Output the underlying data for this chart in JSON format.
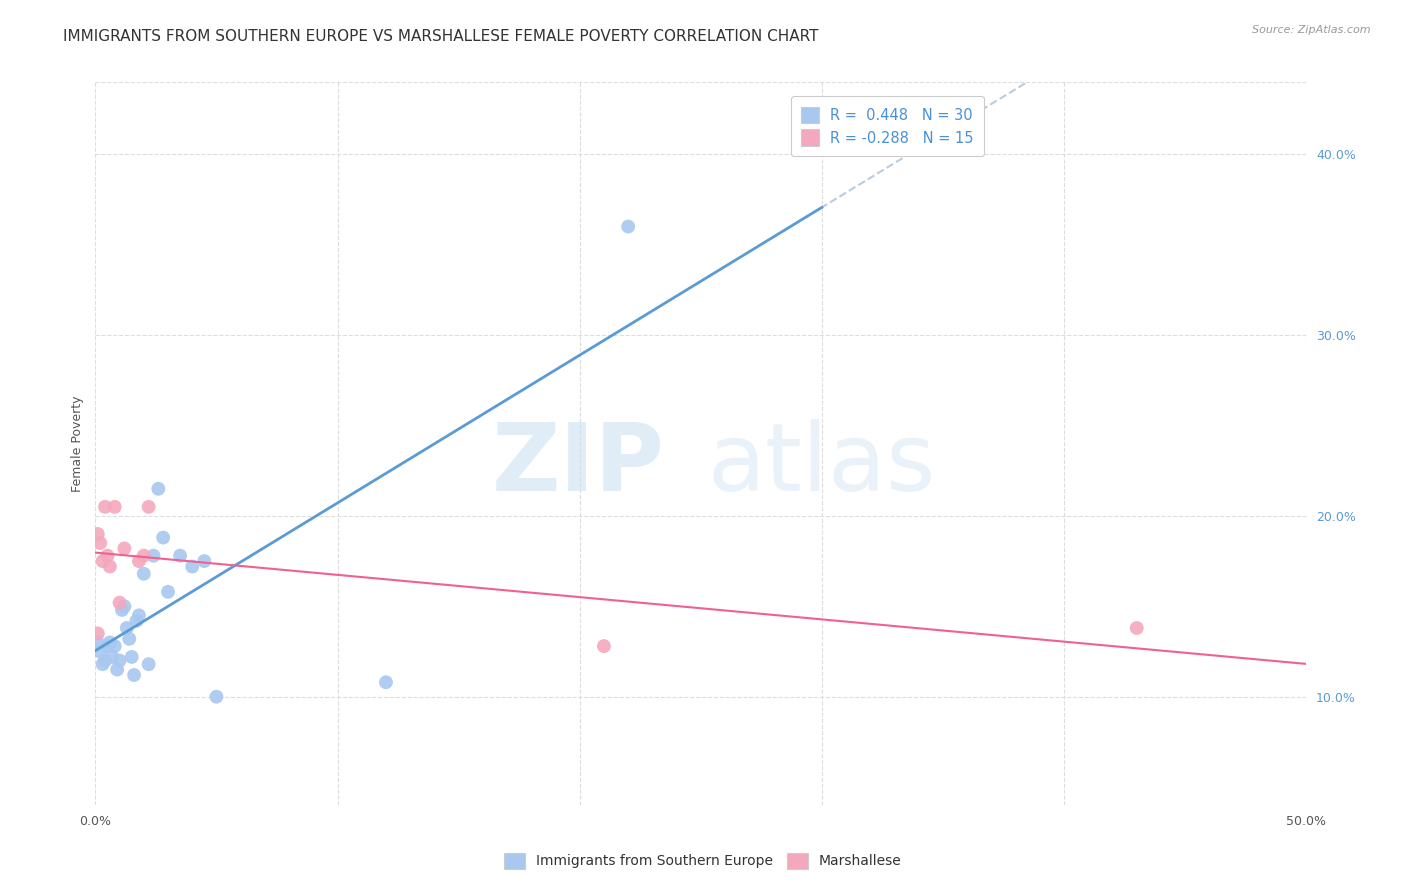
{
  "title": "IMMIGRANTS FROM SOUTHERN EUROPE VS MARSHALLESE FEMALE POVERTY CORRELATION CHART",
  "source": "Source: ZipAtlas.com",
  "ylabel": "Female Poverty",
  "xlim": [
    0.0,
    0.5
  ],
  "ylim": [
    0.04,
    0.44
  ],
  "xticks": [
    0.0,
    0.1,
    0.2,
    0.3,
    0.4,
    0.5
  ],
  "xticklabels": [
    "0.0%",
    "",
    "",
    "",
    "",
    "50.0%"
  ],
  "yticks": [
    0.1,
    0.2,
    0.3,
    0.4
  ],
  "yticklabels": [
    "10.0%",
    "20.0%",
    "30.0%",
    "40.0%"
  ],
  "legend_labels": [
    "Immigrants from Southern Europe",
    "Marshallese"
  ],
  "R_blue": 0.448,
  "N_blue": 30,
  "R_pink": -0.288,
  "N_pink": 15,
  "blue_color": "#A8C8F0",
  "pink_color": "#F4A8BE",
  "line_blue": "#5B9BD5",
  "line_pink": "#F06090",
  "line_dashed_color": "#BBCCDD",
  "blue_x": [
    0.001,
    0.002,
    0.003,
    0.004,
    0.005,
    0.006,
    0.007,
    0.008,
    0.009,
    0.01,
    0.011,
    0.012,
    0.013,
    0.014,
    0.015,
    0.016,
    0.017,
    0.018,
    0.02,
    0.022,
    0.024,
    0.026,
    0.028,
    0.03,
    0.035,
    0.04,
    0.045,
    0.05,
    0.12,
    0.22
  ],
  "blue_y": [
    0.13,
    0.125,
    0.118,
    0.12,
    0.128,
    0.13,
    0.122,
    0.128,
    0.115,
    0.12,
    0.148,
    0.15,
    0.138,
    0.132,
    0.122,
    0.112,
    0.142,
    0.145,
    0.168,
    0.118,
    0.178,
    0.215,
    0.188,
    0.158,
    0.178,
    0.172,
    0.175,
    0.1,
    0.108,
    0.36
  ],
  "pink_x": [
    0.001,
    0.001,
    0.002,
    0.003,
    0.004,
    0.005,
    0.006,
    0.008,
    0.01,
    0.012,
    0.018,
    0.02,
    0.022,
    0.21,
    0.43
  ],
  "pink_y": [
    0.19,
    0.135,
    0.185,
    0.175,
    0.205,
    0.178,
    0.172,
    0.205,
    0.152,
    0.182,
    0.175,
    0.178,
    0.205,
    0.128,
    0.138
  ],
  "marker_size": 100,
  "grid_color": "#DDDDDD",
  "bg_color": "#FFFFFF",
  "title_fontsize": 11,
  "axis_label_fontsize": 9,
  "tick_fontsize": 9,
  "blue_line_xlim": [
    0.0,
    0.35
  ],
  "dashed_line_xlim": [
    0.35,
    0.5
  ]
}
